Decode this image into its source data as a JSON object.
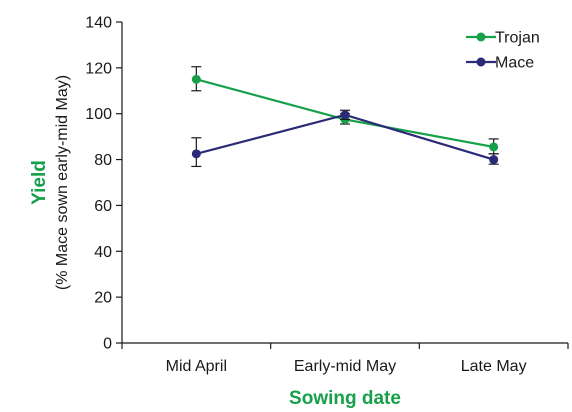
{
  "chart_data": {
    "type": "line",
    "categories": [
      "Mid April",
      "Early-mid May",
      "Late May"
    ],
    "series": [
      {
        "name": "Trojan",
        "color": "#16a04a",
        "values": [
          115,
          97.5,
          85.5
        ],
        "error_low": [
          110,
          95.5,
          82.5
        ],
        "error_high": [
          120.5,
          100,
          89
        ]
      },
      {
        "name": "Mace",
        "color": "#2b2a78",
        "values": [
          82.5,
          99.5,
          80
        ],
        "error_low": [
          77,
          97.5,
          78
        ],
        "error_high": [
          89.5,
          101.5,
          82.5
        ]
      }
    ],
    "ylim": [
      0,
      140
    ],
    "yticks": [
      0,
      20,
      40,
      60,
      80,
      100,
      120,
      140
    ],
    "xlabel": "Sowing date",
    "ylabel": "Yield",
    "ylabel_sub": "(% Mace sown early-mid May)",
    "title_color": "#16a04a",
    "grid": false,
    "legend_position": "top-right"
  }
}
